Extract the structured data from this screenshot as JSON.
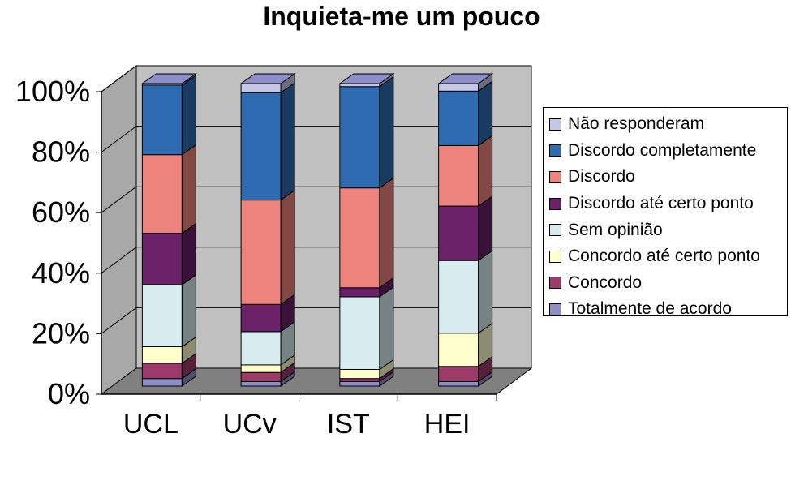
{
  "chart_data": {
    "type": "bar",
    "stacked": true,
    "percent_stacked": true,
    "three_d": true,
    "title": "Inquieta-me um pouco",
    "categories": [
      "UCL",
      "UCv",
      "IST",
      "HEI"
    ],
    "y_ticks": [
      "0%",
      "20%",
      "40%",
      "60%",
      "80%",
      "100%"
    ],
    "ylim": [
      0,
      100
    ],
    "grid": true,
    "legend_position": "right",
    "series": [
      {
        "name": "Totalmente de acordo",
        "color": "#8E8EC8",
        "values": [
          2.5,
          1.5,
          1.5,
          1.5
        ]
      },
      {
        "name": "Concordo",
        "color": "#9C3A6A",
        "values": [
          5,
          3,
          1,
          5
        ]
      },
      {
        "name": "Concordo até certo ponto",
        "color": "#FFFFCC",
        "values": [
          5.5,
          2.5,
          3,
          11
        ]
      },
      {
        "name": "Sem opinião",
        "color": "#D8ECF0",
        "values": [
          20.5,
          11,
          24,
          24
        ]
      },
      {
        "name": "Discordo até certo ponto",
        "color": "#6A2168",
        "values": [
          17,
          9,
          3,
          18
        ]
      },
      {
        "name": "Discordo",
        "color": "#EC837C",
        "values": [
          26,
          34.5,
          33,
          20
        ]
      },
      {
        "name": "Discordo completamente",
        "color": "#2F6BB1",
        "values": [
          23,
          35.5,
          33.5,
          18
        ]
      },
      {
        "name": "Não responderam",
        "color": "#C4C8E6",
        "values": [
          0.5,
          3,
          1,
          2.5
        ]
      }
    ]
  }
}
